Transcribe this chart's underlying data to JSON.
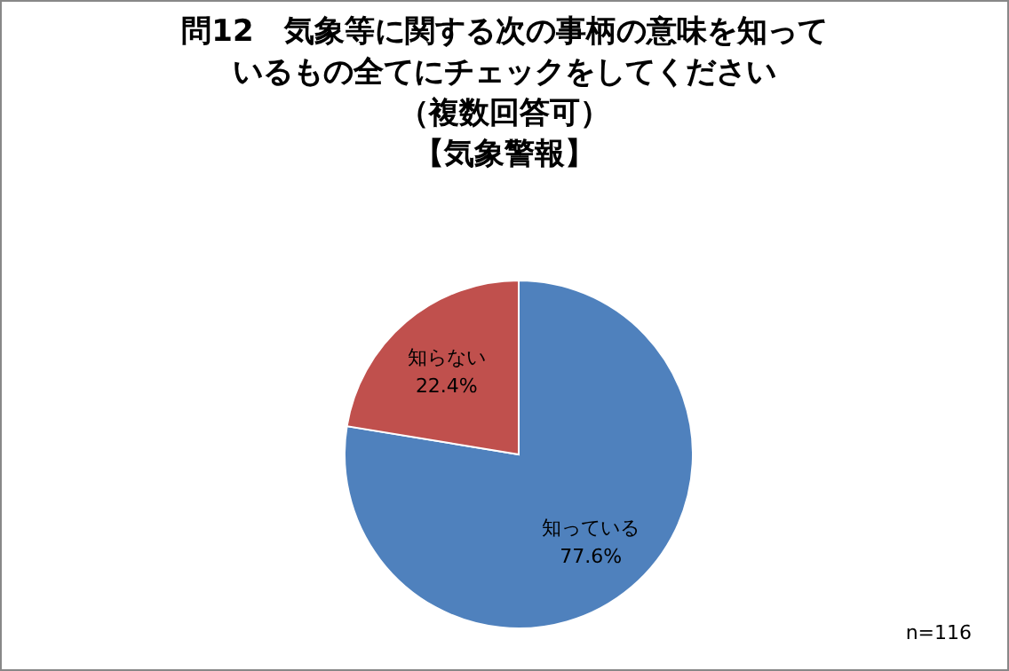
{
  "chart_data": {
    "type": "pie",
    "title": "問12　気象等に関する次の事柄の意味を知っているもの全てにチェックをしてください",
    "subtitle": "（複数回答可）【気象警報】",
    "categories": [
      "知っている",
      "知らない"
    ],
    "values": [
      77.6,
      22.4
    ],
    "colors": [
      "#4f81bd",
      "#c0504d"
    ],
    "value_labels": [
      "77.6%",
      "22.4%"
    ],
    "annotations": [
      "n=116"
    ],
    "legend": false
  }
}
